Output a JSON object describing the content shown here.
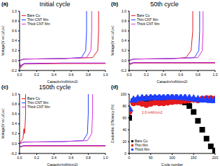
{
  "chart_data": [
    {
      "type": "line",
      "panel_label": "(a)",
      "title": "Initial cycle",
      "x_label": "Capacity(mAh/cm2)",
      "y_label": "Voltage(V vs Li/Li+)",
      "xlim": [
        0,
        1.0
      ],
      "ylim": [
        -0.2,
        1.0
      ],
      "xticks": [
        {
          "value": 0,
          "label": "0.0"
        },
        0.2,
        0.4,
        0.6,
        0.8,
        {
          "value": 1,
          "label": "1.0"
        }
      ],
      "yticks": [
        -0.2,
        {
          "value": 0,
          "label": "0.0"
        },
        0.2,
        0.4,
        0.6,
        0.8,
        {
          "value": 1,
          "label": "1.0"
        }
      ],
      "grid": false,
      "legend": "upper left",
      "series": [
        {
          "name": "Bare Cu",
          "color": "#e41a1c",
          "line_style": "solid",
          "x": [
            0,
            0.01,
            0.05,
            0.5,
            1.0,
            1.0,
            0,
            0.05,
            0.5,
            0.85,
            0.91,
            0.92,
            0.92
          ],
          "values": [
            -0.05,
            -0.15,
            -0.07,
            -0.06,
            -0.06,
            null,
            0.0,
            0.03,
            0.04,
            0.06,
            0.2,
            0.6,
            1.0
          ]
        },
        {
          "name": "Thin CNT film",
          "color": "#1f3fff",
          "line_style": "solid",
          "x": [
            0,
            0.01,
            0.05,
            0.5,
            1.0,
            1.0,
            0,
            0.05,
            0.5,
            0.72,
            0.77,
            0.78,
            0.78
          ],
          "values": [
            -0.05,
            -0.12,
            -0.06,
            -0.05,
            -0.05,
            null,
            0.0,
            0.03,
            0.04,
            0.06,
            0.2,
            0.6,
            1.0
          ]
        },
        {
          "name": "Thick CNT film",
          "color": "#d633d6",
          "line_style": "solid",
          "x": [
            0,
            0.01,
            0.05,
            0.5,
            1.0,
            1.0,
            0,
            0.05,
            0.5,
            0.78,
            0.83,
            0.84,
            0.84
          ],
          "values": [
            -0.05,
            -0.1,
            -0.06,
            -0.05,
            -0.05,
            null,
            0.0,
            0.03,
            0.04,
            0.06,
            0.2,
            0.6,
            1.0
          ]
        }
      ]
    },
    {
      "type": "line",
      "panel_label": "(b)",
      "title": "50th cycle",
      "x_label": "Capacity(mAh/cm2)",
      "y_label": "Voltage(V vs Li/Li+)",
      "xlim": [
        0,
        1.0
      ],
      "ylim": [
        -0.2,
        1.0
      ],
      "xticks": [
        {
          "value": 0,
          "label": "0.0"
        },
        0.2,
        0.4,
        0.6,
        0.8,
        {
          "value": 1,
          "label": "1.0"
        }
      ],
      "yticks": [
        -0.2,
        {
          "value": 0,
          "label": "0.0"
        },
        0.2,
        0.4,
        0.6,
        0.8,
        {
          "value": 1,
          "label": "1.0"
        }
      ],
      "grid": false,
      "legend": "upper left",
      "series": [
        {
          "name": "Bare Cu",
          "color": "#e41a1c",
          "line_style": "solid",
          "x": [
            0,
            0.01,
            0.05,
            0.5,
            1.0,
            1.0,
            0,
            0.05,
            0.5,
            0.66,
            0.72,
            0.74,
            0.74
          ],
          "values": [
            -0.05,
            -0.08,
            -0.05,
            -0.05,
            -0.05,
            null,
            0.0,
            0.03,
            0.04,
            0.06,
            0.2,
            0.6,
            1.0
          ]
        },
        {
          "name": "Thin CNT film",
          "color": "#1f3fff",
          "line_style": "solid",
          "x": [
            0,
            0.01,
            0.05,
            0.5,
            1.0,
            1.0,
            0,
            0.05,
            0.5,
            0.76,
            0.81,
            0.82,
            0.82
          ],
          "values": [
            -0.04,
            -0.06,
            -0.04,
            -0.04,
            -0.04,
            null,
            0.0,
            0.03,
            0.04,
            0.06,
            0.2,
            0.6,
            1.0
          ]
        },
        {
          "name": "Thick CNT film",
          "color": "#d633d6",
          "line_style": "solid",
          "x": [
            0,
            0.01,
            0.05,
            0.5,
            1.0,
            1.0,
            0,
            0.05,
            0.5,
            0.8,
            0.85,
            0.86,
            0.86
          ],
          "values": [
            -0.04,
            -0.06,
            -0.04,
            -0.04,
            -0.04,
            null,
            0.0,
            0.03,
            0.04,
            0.06,
            0.2,
            0.6,
            1.0
          ]
        }
      ]
    },
    {
      "type": "line",
      "panel_label": "(c)",
      "title": "150th cycle",
      "x_label": "Capacity(mAh/cm2)",
      "y_label": "Voltage(V vs Li/Li+)",
      "xlim": [
        0,
        1.0
      ],
      "ylim": [
        -0.2,
        1.0
      ],
      "xticks": [
        {
          "value": 0,
          "label": "0.0"
        },
        0.2,
        0.4,
        0.6,
        0.8,
        {
          "value": 1,
          "label": "1.0"
        }
      ],
      "yticks": [
        -0.2,
        {
          "value": 0,
          "label": "0.0"
        },
        0.2,
        0.4,
        0.6,
        0.8,
        {
          "value": 1,
          "label": "1.0"
        }
      ],
      "grid": false,
      "legend": "upper left",
      "series": [
        {
          "name": "Bare Cu",
          "color": "#e41a1c",
          "line_style": "solid",
          "x": [
            0,
            0.01,
            0.05,
            0.5,
            1.0,
            1.0,
            0,
            0.02,
            0.04,
            0.05,
            0.06,
            0.07,
            0.07
          ],
          "values": [
            -0.05,
            -0.07,
            -0.05,
            -0.05,
            -0.05,
            null,
            0.0,
            0.05,
            0.1,
            0.3,
            0.2,
            0.6,
            1.0
          ]
        },
        {
          "name": "Thin CNT film",
          "color": "#1f3fff",
          "line_style": "solid",
          "x": [
            0,
            0.01,
            0.05,
            0.5,
            1.0,
            1.0,
            0,
            0.05,
            0.5,
            0.74,
            0.79,
            0.8,
            0.8
          ],
          "values": [
            -0.04,
            -0.06,
            -0.04,
            -0.04,
            -0.04,
            null,
            0.0,
            0.03,
            0.04,
            0.06,
            0.2,
            0.6,
            1.0
          ]
        },
        {
          "name": "Thick CNT film",
          "color": "#d633d6",
          "line_style": "solid",
          "x": [
            0,
            0.01,
            0.05,
            0.5,
            1.0,
            1.0,
            0,
            0.05,
            0.5,
            0.79,
            0.84,
            0.85,
            0.85
          ],
          "values": [
            -0.04,
            -0.06,
            -0.04,
            -0.04,
            -0.04,
            null,
            0.0,
            0.03,
            0.04,
            0.06,
            0.2,
            0.6,
            1.0
          ]
        }
      ]
    },
    {
      "type": "scatter",
      "panel_label": "(d)",
      "title": "",
      "x_label": "Cycle number",
      "y_label": "Coulombic Efficiency (%)",
      "annotation": "1.0 mAh/cm2",
      "xlim": [
        0,
        200
      ],
      "ylim": [
        0,
        100
      ],
      "xticks": [
        0,
        50,
        100,
        150,
        200
      ],
      "yticks": [
        0,
        20,
        40,
        60,
        80,
        100
      ],
      "grid": false,
      "legend": "lower left",
      "series": [
        {
          "name": "Bare Cu",
          "color": "#000000",
          "marker": "square",
          "x": [
            0,
            10,
            20,
            30,
            40,
            50,
            60,
            70,
            80,
            90,
            100,
            110,
            120,
            130,
            140,
            150,
            160,
            170,
            180,
            190,
            200
          ],
          "values": [
            60,
            88,
            90,
            91,
            92,
            92,
            93,
            93,
            92,
            92,
            91,
            90,
            88,
            86,
            80,
            70,
            55,
            40,
            25,
            12,
            5
          ]
        },
        {
          "name": "Thin film",
          "color": "#e41a1c",
          "marker": "circle",
          "x": [
            0,
            10,
            20,
            30,
            40,
            50,
            60,
            70,
            80,
            90,
            100,
            110,
            120,
            130,
            140,
            150,
            160,
            170,
            180,
            190,
            200
          ],
          "values": [
            70,
            85,
            86,
            84,
            82,
            84,
            86,
            85,
            85,
            86,
            87,
            88,
            88,
            89,
            90,
            91,
            90,
            92,
            93,
            93,
            92
          ]
        },
        {
          "name": "Thick film",
          "color": "#1f3fff",
          "marker": "triangle",
          "x": [
            0,
            10,
            20,
            30,
            40,
            50,
            60,
            70,
            80,
            90,
            100,
            110,
            120,
            130,
            140,
            150,
            160,
            170,
            180,
            190,
            200
          ],
          "values": [
            75,
            90,
            92,
            93,
            93,
            94,
            94,
            94,
            94,
            95,
            95,
            95,
            94,
            94,
            93,
            92,
            91,
            90,
            90,
            89,
            89
          ]
        }
      ]
    }
  ]
}
